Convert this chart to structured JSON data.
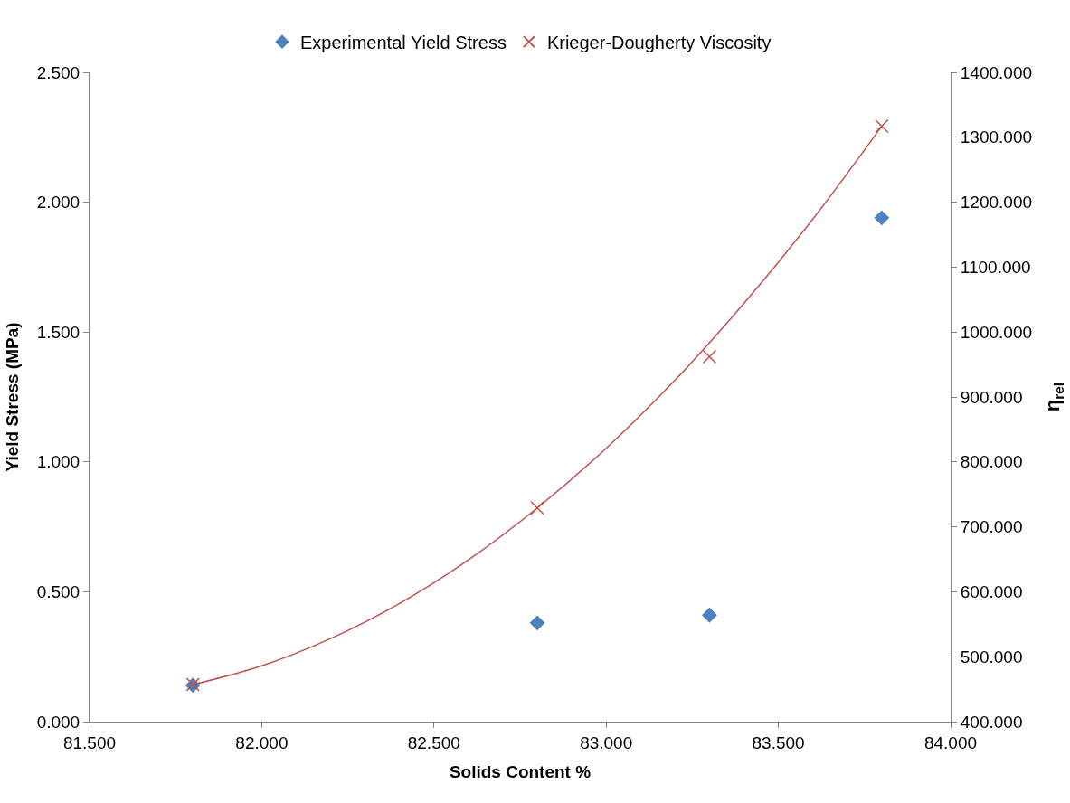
{
  "chart_data": {
    "type": "scatter",
    "xlabel": "Solids Content %",
    "ylabel": "Yield Stress (MPa)",
    "y2label": "η$_{rel}$",
    "xlim": [
      81.5,
      84.0
    ],
    "xticks": [
      {
        "value": 81.5,
        "label": "81.500"
      },
      {
        "value": 82.0,
        "label": "82.000"
      },
      {
        "value": 82.5,
        "label": "82.500"
      },
      {
        "value": 83.0,
        "label": "83.000"
      },
      {
        "value": 83.5,
        "label": "83.500"
      },
      {
        "value": 84.0,
        "label": "84.000"
      }
    ],
    "ylim": [
      0,
      2.5
    ],
    "yticks": [
      {
        "value": 0,
        "label": "0.000"
      },
      {
        "value": 0.5,
        "label": "0.500"
      },
      {
        "value": 1.0,
        "label": "1.000"
      },
      {
        "value": 1.5,
        "label": "1.500"
      },
      {
        "value": 2.0,
        "label": "2.000"
      },
      {
        "value": 2.5,
        "label": "2.500"
      }
    ],
    "y2lim": [
      400,
      1400
    ],
    "y2ticks": [
      {
        "value": 400,
        "label": "400.000"
      },
      {
        "value": 500,
        "label": "500.000"
      },
      {
        "value": 600,
        "label": "600.000"
      },
      {
        "value": 700,
        "label": "700.000"
      },
      {
        "value": 800,
        "label": "800.000"
      },
      {
        "value": 900,
        "label": "900.000"
      },
      {
        "value": 1000,
        "label": "1000.000"
      },
      {
        "value": 1100,
        "label": "1100.000"
      },
      {
        "value": 1200,
        "label": "1200.000"
      },
      {
        "value": 1300,
        "label": "1300.000"
      },
      {
        "value": 1400,
        "label": "1400.000"
      }
    ],
    "grid": false,
    "legend": "top",
    "series": [
      {
        "name": "Experimental Yield Stress",
        "marker": "diamond",
        "color": "#4f81bd",
        "x": [
          81.8,
          82.8,
          83.3,
          83.8
        ],
        "values": [
          0.14,
          0.38,
          0.41,
          1.94
        ]
      },
      {
        "name": "Krieger-Dougherty Viscosity",
        "marker": "cross",
        "color": "#c0504d",
        "axis": "y2",
        "x": [
          81.8,
          82.8,
          83.3,
          83.8
        ],
        "values": [
          457,
          729,
          962,
          1317
        ]
      },
      {
        "type": "line",
        "marker": "none",
        "line_style": "solid",
        "color": "#c0504d",
        "axis": "y2",
        "x": [
          81.8,
          82.0,
          82.2,
          82.4,
          82.6,
          82.8,
          83.0,
          83.2,
          83.4,
          83.6,
          83.8
        ],
        "values": [
          457,
          486,
          528,
          582,
          649,
          729,
          821,
          926,
          1044,
          1174,
          1317
        ]
      }
    ]
  }
}
